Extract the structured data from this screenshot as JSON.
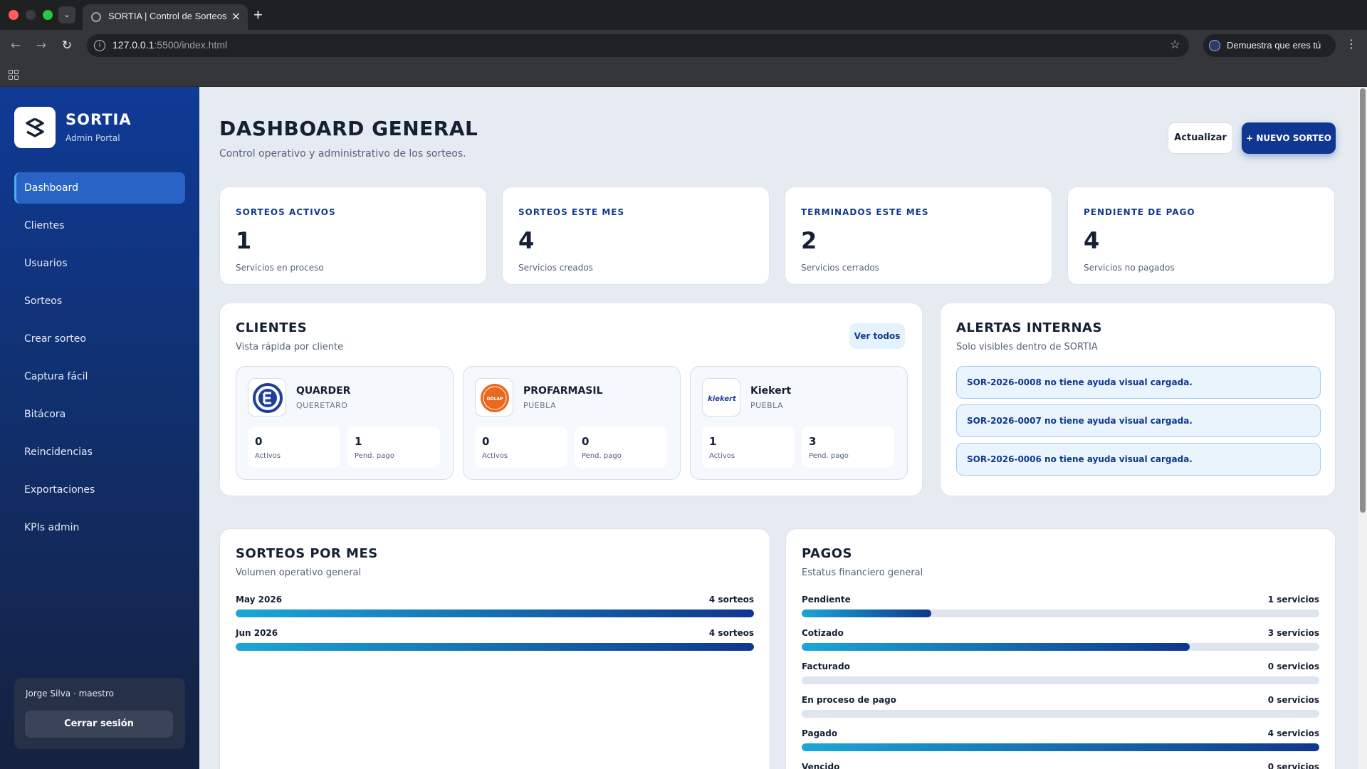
{
  "browser": {
    "tab_title": "SORTIA | Control de Sorteos",
    "url_host": "127.0.0.1",
    "url_rest": ":5500/index.html",
    "profile_label": "Demuestra que eres tú"
  },
  "sidebar": {
    "brand": "SORTIA",
    "brand_sub": "Admin Portal",
    "items": [
      {
        "label": "Dashboard",
        "active": true
      },
      {
        "label": "Clientes"
      },
      {
        "label": "Usuarios"
      },
      {
        "label": "Sorteos"
      },
      {
        "label": "Crear sorteo"
      },
      {
        "label": "Captura fácil"
      },
      {
        "label": "Bitácora"
      },
      {
        "label": "Reincidencias"
      },
      {
        "label": "Exportaciones"
      },
      {
        "label": "KPIs admin"
      }
    ],
    "user": "Jorge Silva · maestro",
    "logout_label": "Cerrar sesión"
  },
  "header": {
    "title": "DASHBOARD GENERAL",
    "subtitle": "Control operativo y administrativo de los sorteos.",
    "refresh_label": "Actualizar",
    "new_label": "+ NUEVO SORTEO"
  },
  "stats": [
    {
      "label": "SORTEOS ACTIVOS",
      "value": "1",
      "desc": "Servicios en proceso"
    },
    {
      "label": "SORTEOS ESTE MES",
      "value": "4",
      "desc": "Servicios creados"
    },
    {
      "label": "TERMINADOS ESTE MES",
      "value": "2",
      "desc": "Servicios cerrados"
    },
    {
      "label": "PENDIENTE DE PAGO",
      "value": "4",
      "desc": "Servicios no pagados"
    }
  ],
  "clients": {
    "title": "CLIENTES",
    "subtitle": "Vista rápida por cliente",
    "view_all": "Ver todos",
    "items": [
      {
        "name": "QUARDER",
        "city": "QUERETARO",
        "activos": "0",
        "pend": "1",
        "logo_text": ""
      },
      {
        "name": "PROFARMASIL",
        "city": "PUEBLA",
        "activos": "0",
        "pend": "0",
        "logo_text": "ODLAP"
      },
      {
        "name": "Kiekert",
        "city": "PUEBLA",
        "activos": "1",
        "pend": "3",
        "logo_text": "kiekert"
      }
    ],
    "activos_label": "Activos",
    "pend_label": "Pend. pago"
  },
  "alerts": {
    "title": "ALERTAS INTERNAS",
    "subtitle": "Solo visibles dentro de SORTIA",
    "items": [
      "SOR-2026-0008 no tiene ayuda visual cargada.",
      "SOR-2026-0007 no tiene ayuda visual cargada.",
      "SOR-2026-0006 no tiene ayuda visual cargada."
    ]
  },
  "by_month": {
    "title": "SORTEOS POR MES",
    "subtitle": "Volumen operativo general",
    "rows": [
      {
        "label": "May 2026",
        "value": "4 sorteos",
        "fraction": 1.0
      },
      {
        "label": "Jun 2026",
        "value": "4 sorteos",
        "fraction": 1.0
      }
    ]
  },
  "payments": {
    "title": "PAGOS",
    "subtitle": "Estatus financiero general",
    "rows": [
      {
        "label": "Pendiente",
        "value": "1 servicios",
        "fraction": 0.25
      },
      {
        "label": "Cotizado",
        "value": "3 servicios",
        "fraction": 0.75
      },
      {
        "label": "Facturado",
        "value": "0 servicios",
        "fraction": 0
      },
      {
        "label": "En proceso de pago",
        "value": "0 servicios",
        "fraction": 0
      },
      {
        "label": "Pagado",
        "value": "4 servicios",
        "fraction": 1.0
      },
      {
        "label": "Vencido",
        "value": "0 servicios",
        "fraction": 0
      }
    ]
  },
  "colors": {
    "primary": "#0f3690",
    "accent": "#1aa7d6",
    "background": "#e6ebf2"
  }
}
